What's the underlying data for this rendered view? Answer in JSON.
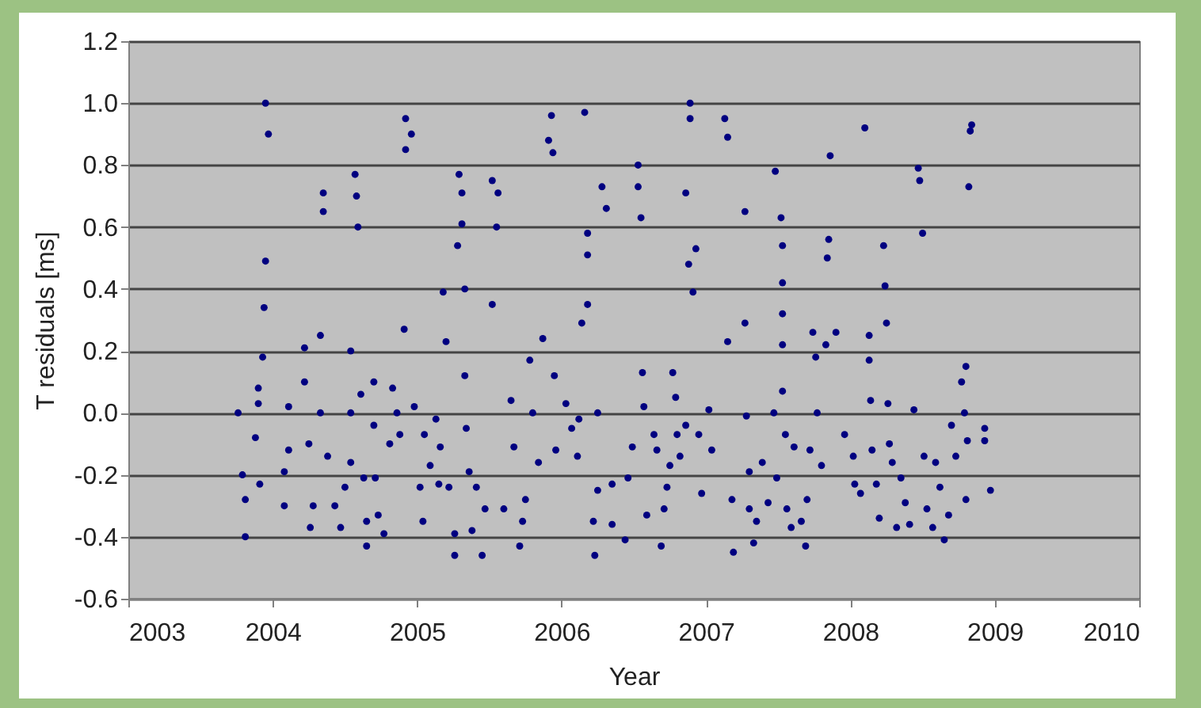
{
  "chart_data": {
    "type": "scatter",
    "xlabel": "Year",
    "ylabel": "T residuals [ms]",
    "color": "#000080",
    "marker": "circle",
    "grid": "y",
    "legend": false,
    "xlim": [
      2003,
      2010
    ],
    "xticks": [
      2003,
      2004,
      2005,
      2006,
      2007,
      2008,
      2009,
      2010
    ],
    "ylim": [
      -0.6,
      1.2
    ],
    "yticks": [
      -0.6,
      -0.4,
      -0.2,
      {
        "value": 0,
        "label": "0.0"
      },
      0.2,
      0.4,
      0.6,
      0.8,
      {
        "value": 1,
        "label": "1.0"
      },
      1.2
    ],
    "x": [
      2003.76,
      2003.79,
      2003.81,
      2003.81,
      2003.88,
      2003.9,
      2003.9,
      2003.93,
      2003.94,
      2003.95,
      2003.95,
      2003.97,
      2003.91,
      2004.11,
      2004.11,
      2004.08,
      2004.08,
      2004.22,
      2004.22,
      2004.25,
      2004.28,
      2004.26,
      2004.33,
      2004.33,
      2004.35,
      2004.35,
      2004.38,
      2004.43,
      2004.47,
      2004.5,
      2004.54,
      2004.54,
      2004.54,
      2004.57,
      2004.58,
      2004.59,
      2004.61,
      2004.63,
      2004.65,
      2004.65,
      2004.7,
      2004.7,
      2004.71,
      2004.73,
      2004.77,
      2004.81,
      2004.83,
      2004.86,
      2004.88,
      2004.92,
      2004.92,
      2004.91,
      2004.96,
      2004.98,
      2005.02,
      2005.04,
      2005.05,
      2005.09,
      2005.13,
      2005.15,
      2005.16,
      2005.18,
      2005.2,
      2005.22,
      2005.26,
      2005.26,
      2005.28,
      2005.29,
      2005.31,
      2005.31,
      2005.33,
      2005.33,
      2005.34,
      2005.36,
      2005.38,
      2005.41,
      2005.45,
      2005.47,
      2005.52,
      2005.52,
      2005.55,
      2005.56,
      2005.6,
      2005.65,
      2005.67,
      2005.71,
      2005.73,
      2005.75,
      2005.78,
      2005.8,
      2005.84,
      2005.87,
      2005.91,
      2005.93,
      2005.94,
      2005.95,
      2005.96,
      2006.03,
      2006.07,
      2006.11,
      2006.12,
      2006.14,
      2006.16,
      2006.18,
      2006.18,
      2006.18,
      2006.22,
      2006.23,
      2006.25,
      2006.25,
      2006.28,
      2006.31,
      2006.35,
      2006.35,
      2006.44,
      2006.46,
      2006.49,
      2006.53,
      2006.53,
      2006.55,
      2006.56,
      2006.57,
      2006.59,
      2006.64,
      2006.66,
      2006.69,
      2006.71,
      2006.73,
      2006.75,
      2006.77,
      2006.79,
      2006.8,
      2006.82,
      2006.86,
      2006.89,
      2006.89,
      2006.88,
      2006.91,
      2006.93,
      2006.86,
      2006.95,
      2006.97,
      2007.02,
      2007.04,
      2007.13,
      2007.15,
      2007.15,
      2007.18,
      2007.19,
      2007.27,
      2007.27,
      2007.28,
      2007.3,
      2007.3,
      2007.33,
      2007.35,
      2007.39,
      2007.43,
      2007.47,
      2007.48,
      2007.49,
      2007.52,
      2007.53,
      2007.53,
      2007.53,
      2007.53,
      2007.53,
      2007.55,
      2007.56,
      2007.59,
      2007.61,
      2007.66,
      2007.69,
      2007.7,
      2007.72,
      2007.74,
      2007.76,
      2007.77,
      2007.8,
      2007.83,
      2007.84,
      2007.85,
      2007.86,
      2007.9,
      2007.96,
      2008.02,
      2008.03,
      2008.07,
      2008.1,
      2008.13,
      2008.13,
      2008.14,
      2008.15,
      2008.18,
      2008.2,
      2008.23,
      2008.24,
      2008.25,
      2008.26,
      2008.27,
      2008.29,
      2008.32,
      2008.35,
      2008.38,
      2008.41,
      2008.44,
      2008.47,
      2008.48,
      2008.5,
      2008.51,
      2008.53,
      2008.57,
      2008.59,
      2008.62,
      2008.65,
      2008.68,
      2008.7,
      2008.73,
      2008.77,
      2008.79,
      2008.8,
      2008.81,
      2008.8,
      2008.82,
      2008.83,
      2008.84,
      2008.93,
      2008.93,
      2008.97
    ],
    "values": [
      0.0,
      -0.2,
      -0.28,
      -0.4,
      -0.08,
      0.03,
      0.08,
      0.18,
      0.34,
      0.49,
      1.0,
      0.9,
      -0.23,
      0.02,
      -0.12,
      -0.19,
      -0.3,
      0.21,
      0.1,
      -0.1,
      -0.3,
      -0.37,
      0.25,
      0.0,
      0.71,
      0.65,
      -0.14,
      -0.3,
      -0.37,
      -0.24,
      0.2,
      0.0,
      -0.16,
      0.77,
      0.7,
      0.6,
      0.06,
      -0.21,
      -0.35,
      -0.43,
      0.1,
      -0.04,
      -0.21,
      -0.33,
      -0.39,
      -0.1,
      0.08,
      0.0,
      -0.07,
      0.95,
      0.85,
      0.27,
      0.9,
      0.02,
      -0.24,
      -0.35,
      -0.07,
      -0.17,
      -0.02,
      -0.23,
      -0.11,
      0.39,
      0.23,
      -0.24,
      -0.46,
      -0.39,
      0.54,
      0.77,
      0.61,
      0.71,
      0.12,
      0.4,
      -0.05,
      -0.19,
      -0.38,
      -0.24,
      -0.46,
      -0.31,
      0.75,
      0.35,
      0.6,
      0.71,
      -0.31,
      0.04,
      -0.11,
      -0.43,
      -0.35,
      -0.28,
      0.17,
      0.0,
      -0.16,
      0.24,
      0.88,
      0.96,
      0.84,
      0.12,
      -0.12,
      0.03,
      -0.05,
      -0.14,
      -0.02,
      0.29,
      0.97,
      0.58,
      0.51,
      0.35,
      -0.35,
      -0.46,
      0.0,
      -0.25,
      0.73,
      0.66,
      -0.36,
      -0.23,
      -0.41,
      -0.21,
      -0.11,
      0.8,
      0.73,
      0.63,
      0.13,
      0.02,
      -0.33,
      -0.07,
      -0.12,
      -0.43,
      -0.31,
      -0.24,
      -0.17,
      0.13,
      0.05,
      -0.07,
      -0.14,
      0.71,
      1.0,
      0.95,
      0.48,
      0.39,
      0.53,
      -0.04,
      -0.07,
      -0.26,
      0.01,
      -0.12,
      0.95,
      0.89,
      0.23,
      -0.28,
      -0.45,
      0.65,
      0.29,
      -0.01,
      -0.19,
      -0.31,
      -0.42,
      -0.35,
      -0.16,
      -0.29,
      0.0,
      0.78,
      -0.21,
      0.63,
      0.54,
      0.42,
      0.32,
      0.22,
      0.07,
      -0.07,
      -0.31,
      -0.37,
      -0.11,
      -0.35,
      -0.43,
      -0.28,
      -0.12,
      0.26,
      0.18,
      0.0,
      -0.17,
      0.22,
      0.5,
      0.56,
      0.83,
      0.26,
      -0.07,
      -0.14,
      -0.23,
      -0.26,
      0.92,
      0.25,
      0.17,
      0.04,
      -0.12,
      -0.23,
      -0.34,
      0.54,
      0.41,
      0.29,
      0.03,
      -0.1,
      -0.16,
      -0.37,
      -0.21,
      -0.29,
      -0.36,
      0.01,
      0.79,
      0.75,
      0.58,
      -0.14,
      -0.31,
      -0.37,
      -0.16,
      -0.24,
      -0.41,
      -0.33,
      -0.04,
      -0.14,
      0.1,
      0.0,
      0.15,
      -0.09,
      -0.28,
      0.73,
      0.91,
      0.93,
      -0.05,
      -0.09,
      -0.25
    ]
  }
}
